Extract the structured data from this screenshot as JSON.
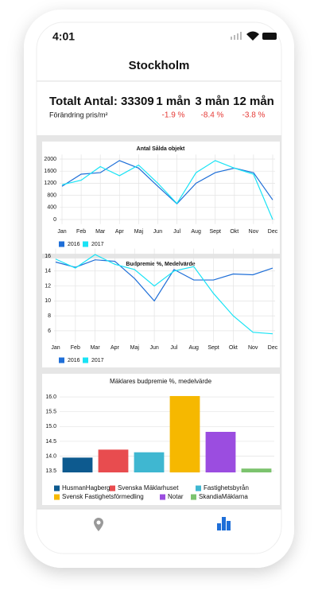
{
  "status": {
    "time": "4:01"
  },
  "header": {
    "title": "Stockholm"
  },
  "summary": {
    "total": "Totalt Antal: 33309",
    "periods": [
      "1 mån",
      "3 mån",
      "12 mån"
    ],
    "change_label": "Förändring pris/m²",
    "changes": [
      "-1.9 %",
      "-8.4 %",
      "-3.8 %"
    ]
  },
  "chart_data": [
    {
      "type": "line",
      "title": "Antal Sålda objekt",
      "categories": [
        "Jan",
        "Feb",
        "Mar",
        "Apr",
        "Maj",
        "Jun",
        "Jul",
        "Aug",
        "Sept",
        "Okt",
        "Nov",
        "Dec"
      ],
      "series": [
        {
          "name": "2016",
          "color": "#1f6fd8",
          "values": [
            1100,
            1500,
            1550,
            1950,
            1700,
            1100,
            520,
            1200,
            1550,
            1700,
            1550,
            650
          ]
        },
        {
          "name": "2017",
          "color": "#19e3f5",
          "values": [
            1150,
            1300,
            1750,
            1450,
            1800,
            1200,
            530,
            1550,
            1950,
            1700,
            1500,
            0
          ]
        }
      ],
      "ylim": [
        -150,
        2150
      ],
      "yticks": [
        0,
        400,
        800,
        1200,
        1600,
        2000
      ],
      "grid": true
    },
    {
      "type": "line",
      "title": "Budpremie %, Medelvärde",
      "categories": [
        "Jan",
        "Feb",
        "Mar",
        "Apr",
        "Maj",
        "Jun",
        "Jul",
        "Aug",
        "Sept",
        "Okt",
        "Nov",
        "Dec"
      ],
      "series": [
        {
          "name": "2016",
          "color": "#1f6fd8",
          "values": [
            15.2,
            14.5,
            15.5,
            15.3,
            13.0,
            10.0,
            14.2,
            12.8,
            12.8,
            13.6,
            13.5,
            14.4
          ]
        },
        {
          "name": "2017",
          "color": "#19e3f5",
          "values": [
            15.6,
            14.4,
            16.2,
            14.9,
            14.2,
            12.0,
            14.0,
            14.6,
            11.0,
            8.0,
            5.8,
            5.6
          ]
        }
      ],
      "ylim": [
        4.5,
        17
      ],
      "yticks": [
        6,
        8,
        10,
        12,
        14,
        16
      ],
      "grid": true
    },
    {
      "type": "bar",
      "title": "Mäklares budpremie %, medelvärde",
      "categories": [
        "HusmanHagberg",
        "Svenska Mäklarhuset",
        "Fastighetsbyrån",
        "Svensk Fastighetsförmedling",
        "Notar",
        "SkandiaMäklarna"
      ],
      "values": [
        13.95,
        14.22,
        14.13,
        16.03,
        14.82,
        13.58
      ],
      "colors": [
        "#0d5a8f",
        "#e84c4f",
        "#3fb7d1",
        "#f6b800",
        "#9b4de0",
        "#7cc36e"
      ],
      "ylim": [
        13.45,
        16.15
      ],
      "yticks": [
        13.5,
        {
          "value": 14,
          "label": "14.0"
        },
        14.5,
        {
          "value": 15,
          "label": "15.0"
        },
        15.5,
        {
          "value": 16,
          "label": "16.0"
        }
      ],
      "grid": true
    }
  ]
}
